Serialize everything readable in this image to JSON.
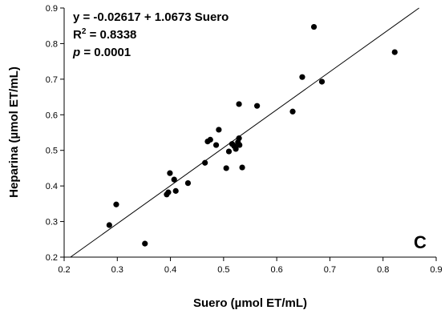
{
  "chart_data": {
    "type": "scatter",
    "xlabel": "Suero (µmol ET/mL)",
    "ylabel": "Heparina (µmol ET/mL)",
    "xlim": [
      0.2,
      0.9
    ],
    "ylim": [
      0.2,
      0.9
    ],
    "xticks": [
      "0.2",
      "0.3",
      "0.4",
      "0.5",
      "0.6",
      "0.7",
      "0.8",
      "0.9"
    ],
    "yticks": [
      "0.2",
      "0.3",
      "0.4",
      "0.5",
      "0.6",
      "0.7",
      "0.8",
      "0.9"
    ],
    "grid": false,
    "annotations": {
      "equation": "y = -0.02617 + 1.0673 Suero",
      "r2_label": "R",
      "r2_sup": "2",
      "r2_value": " = 0.8338",
      "p_label": "p",
      "p_value": " = 0.0001",
      "panel_letter": "C"
    },
    "fit": {
      "intercept": -0.02617,
      "slope": 1.0673
    },
    "points": [
      {
        "x": 0.285,
        "y": 0.29
      },
      {
        "x": 0.298,
        "y": 0.348
      },
      {
        "x": 0.352,
        "y": 0.238
      },
      {
        "x": 0.393,
        "y": 0.376
      },
      {
        "x": 0.396,
        "y": 0.382
      },
      {
        "x": 0.399,
        "y": 0.436
      },
      {
        "x": 0.407,
        "y": 0.418
      },
      {
        "x": 0.41,
        "y": 0.386
      },
      {
        "x": 0.433,
        "y": 0.408
      },
      {
        "x": 0.465,
        "y": 0.465
      },
      {
        "x": 0.47,
        "y": 0.525
      },
      {
        "x": 0.475,
        "y": 0.53
      },
      {
        "x": 0.486,
        "y": 0.515
      },
      {
        "x": 0.491,
        "y": 0.558
      },
      {
        "x": 0.505,
        "y": 0.45
      },
      {
        "x": 0.51,
        "y": 0.497
      },
      {
        "x": 0.516,
        "y": 0.518
      },
      {
        "x": 0.52,
        "y": 0.512
      },
      {
        "x": 0.523,
        "y": 0.504
      },
      {
        "x": 0.527,
        "y": 0.523
      },
      {
        "x": 0.529,
        "y": 0.534
      },
      {
        "x": 0.53,
        "y": 0.515
      },
      {
        "x": 0.529,
        "y": 0.63
      },
      {
        "x": 0.535,
        "y": 0.452
      },
      {
        "x": 0.563,
        "y": 0.625
      },
      {
        "x": 0.63,
        "y": 0.609
      },
      {
        "x": 0.648,
        "y": 0.706
      },
      {
        "x": 0.67,
        "y": 0.847
      },
      {
        "x": 0.685,
        "y": 0.693
      },
      {
        "x": 0.822,
        "y": 0.776
      }
    ]
  }
}
